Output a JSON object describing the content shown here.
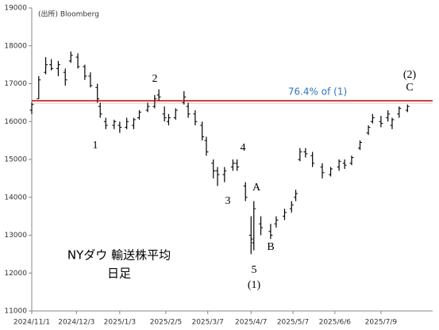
{
  "chart_data": {
    "type": "ohlc",
    "source": "(出所) Bloomberg",
    "title": "NYダウ 輸送株平均",
    "subtitle": "日足",
    "x": [
      "2024/11/1",
      "2024/11/6",
      "2024/11/11",
      "2024/11/15",
      "2024/11/20",
      "2024/11/25",
      "2024/11/29",
      "2024/12/4",
      "2024/12/9",
      "2024/12/13",
      "2024/12/18",
      "2024/12/20",
      "2024/12/24",
      "2024/12/30",
      "2025/1/3",
      "2025/1/8",
      "2025/1/13",
      "2025/1/17",
      "2025/1/23",
      "2025/1/28",
      "2025/1/31",
      "2025/2/4",
      "2025/2/7",
      "2025/2/12",
      "2025/2/18",
      "2025/2/21",
      "2025/2/26",
      "2025/3/3",
      "2025/3/6",
      "2025/3/11",
      "2025/3/14",
      "2025/3/19",
      "2025/3/25",
      "2025/3/28",
      "2025/4/3",
      "2025/4/7",
      "2025/4/9",
      "2025/4/14",
      "2025/4/21",
      "2025/4/25",
      "2025/5/1",
      "2025/5/6",
      "2025/5/9",
      "2025/5/12",
      "2025/5/16",
      "2025/5/21",
      "2025/5/28",
      "2025/6/3",
      "2025/6/9",
      "2025/6/13",
      "2025/6/18",
      "2025/6/24",
      "2025/6/30",
      "2025/7/3",
      "2025/7/9",
      "2025/7/14",
      "2025/7/17",
      "2025/7/22",
      "2025/7/28"
    ],
    "open": [
      16300,
      16600,
      17300,
      17500,
      17400,
      17300,
      17600,
      17700,
      17450,
      17200,
      16900,
      16400,
      16000,
      15900,
      15900,
      15850,
      15900,
      16100,
      16300,
      16400,
      16700,
      16200,
      16000,
      16100,
      16500,
      16400,
      16200,
      15900,
      15500,
      14900,
      14700,
      14600,
      14800,
      14900,
      14300,
      13000,
      12800,
      13300,
      13100,
      13300,
      13500,
      13700,
      14000,
      15000,
      15200,
      15100,
      14800,
      14600,
      14800,
      14900,
      14900,
      15300,
      15700,
      16000,
      16000,
      16100,
      15900,
      16200,
      16300
    ],
    "high": [
      16500,
      17200,
      17700,
      17650,
      17600,
      17400,
      17850,
      17800,
      17500,
      17300,
      17000,
      16500,
      16100,
      16050,
      16000,
      16100,
      16100,
      16300,
      16500,
      16700,
      16850,
      16400,
      16200,
      16350,
      16800,
      16500,
      16300,
      16000,
      15600,
      15000,
      14800,
      14800,
      15000,
      15000,
      14400,
      13500,
      13900,
      13500,
      13300,
      13500,
      13700,
      13900,
      14200,
      15300,
      15300,
      15200,
      14900,
      14800,
      15000,
      15000,
      15100,
      15500,
      15900,
      16200,
      16150,
      16300,
      16100,
      16400,
      16450
    ],
    "low": [
      16200,
      16600,
      17250,
      17350,
      17200,
      16950,
      17550,
      17400,
      17100,
      16900,
      16500,
      16100,
      15800,
      15800,
      15700,
      15800,
      15800,
      16050,
      16250,
      16350,
      16550,
      16000,
      15900,
      16050,
      16450,
      16100,
      15900,
      15500,
      15100,
      14500,
      14300,
      14400,
      14700,
      14700,
      13900,
      12500,
      12600,
      13000,
      12900,
      13200,
      13400,
      13600,
      13900,
      14950,
      15050,
      14800,
      14500,
      14550,
      14700,
      14750,
      14850,
      15250,
      15650,
      15950,
      15850,
      16000,
      15800,
      16100,
      16250
    ],
    "close": [
      16450,
      17100,
      17500,
      17400,
      17500,
      17100,
      17750,
      17450,
      17200,
      16950,
      16600,
      16200,
      15900,
      16000,
      15850,
      16000,
      16050,
      16250,
      16400,
      16600,
      16650,
      16100,
      16100,
      16300,
      16650,
      16200,
      16000,
      15600,
      15200,
      14700,
      14600,
      14700,
      14900,
      14800,
      14000,
      12900,
      13700,
      13200,
      13000,
      13400,
      13600,
      13800,
      14100,
      15200,
      15150,
      14900,
      14650,
      14750,
      14950,
      14850,
      15050,
      15450,
      15850,
      16100,
      15950,
      16200,
      16050,
      16350,
      16400
    ],
    "color": "#000000",
    "xlim": [
      "2024/11/1",
      "2025/8/15"
    ],
    "xticks": [
      "2024/11/1",
      "2024/12/3",
      "2025/1/3",
      "2025/2/5",
      "2025/3/7",
      "2025/4/7",
      "2025/5/7",
      "2025/6/6",
      "2025/7/9"
    ],
    "ylim": [
      11000,
      19000
    ],
    "yticks": [
      11000,
      12000,
      13000,
      14000,
      15000,
      16000,
      17000,
      18000,
      19000
    ],
    "reference_line": {
      "value": 16550,
      "label": "76.4% of (1)",
      "color": "#c00000",
      "label_color": "#2e75b6"
    },
    "wave_labels": [
      "1",
      "2",
      "3",
      "4",
      "5",
      "(1)",
      "A",
      "B",
      "(2)",
      "C"
    ]
  }
}
